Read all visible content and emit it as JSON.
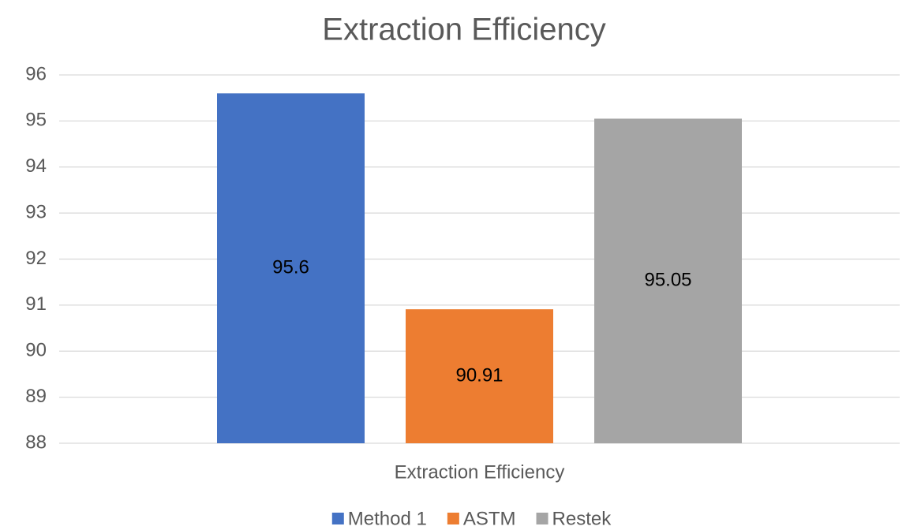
{
  "chart_data": {
    "type": "bar",
    "title": "Extraction Efficiency",
    "categories": [
      "Extraction Efficiency"
    ],
    "series": [
      {
        "name": "Method 1",
        "color": "#4472c4",
        "values": [
          95.6
        ]
      },
      {
        "name": "ASTM",
        "color": "#ed7d31",
        "values": [
          90.91
        ]
      },
      {
        "name": "Restek",
        "color": "#a5a5a5",
        "values": [
          95.05
        ]
      }
    ],
    "ylim": [
      88,
      96
    ],
    "yticks": [
      88,
      89,
      90,
      91,
      92,
      93,
      94,
      95,
      96
    ],
    "grid": true,
    "legend": "bottom",
    "data_labels": true
  }
}
